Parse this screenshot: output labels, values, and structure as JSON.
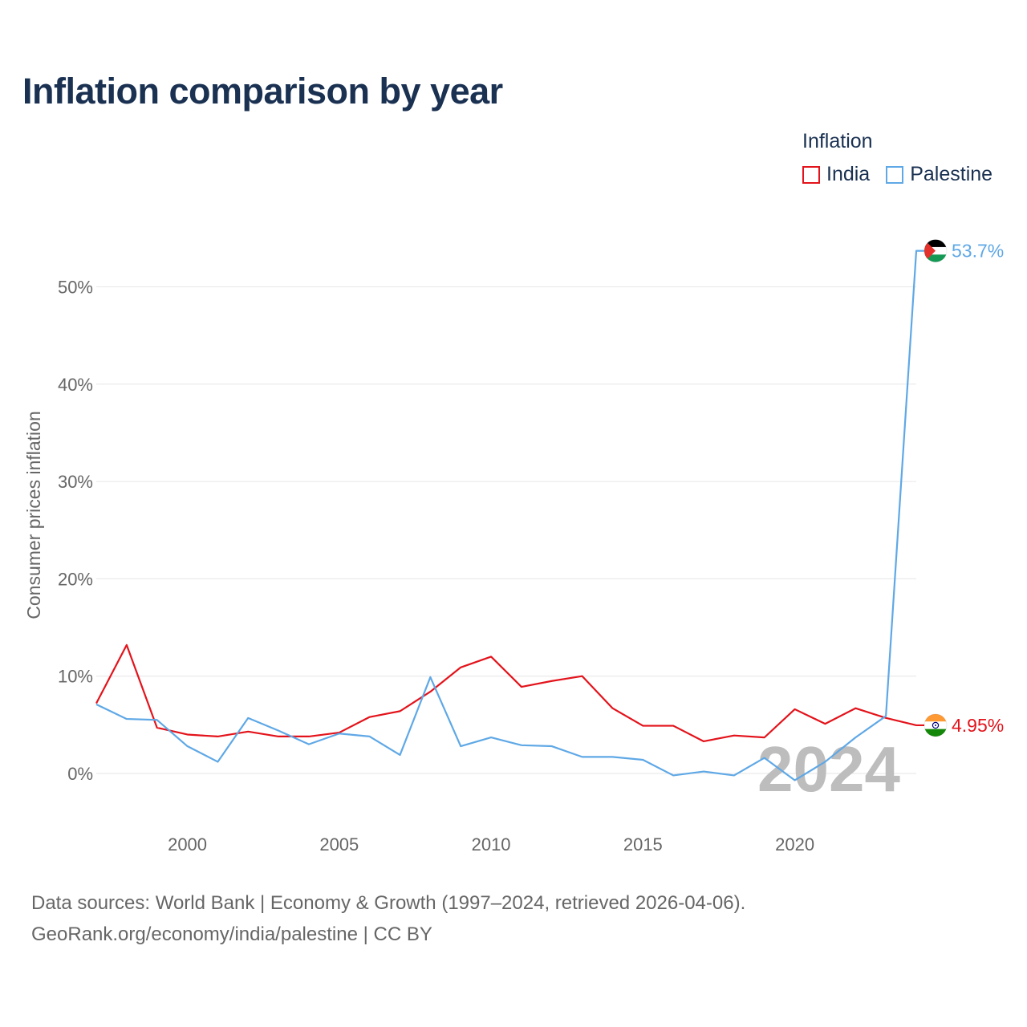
{
  "title": "Inflation comparison by year",
  "legend": {
    "title": "Inflation",
    "items": [
      {
        "label": "India",
        "color": "#e3131b"
      },
      {
        "label": "Palestine",
        "color": "#5fa8e6"
      }
    ]
  },
  "footer": {
    "line1": "Data sources: World Bank | Economy & Growth (1997–2024, retrieved 2026-04-06).",
    "line2": "GeoRank.org/economy/india/palestine | CC BY"
  },
  "chart_data": {
    "type": "line",
    "title": "Inflation comparison by year",
    "xlabel": "",
    "ylabel": "Consumer prices inflation",
    "x": [
      1997,
      1998,
      1999,
      2000,
      2001,
      2002,
      2003,
      2004,
      2005,
      2006,
      2007,
      2008,
      2009,
      2010,
      2011,
      2012,
      2013,
      2014,
      2015,
      2016,
      2017,
      2018,
      2019,
      2020,
      2021,
      2022,
      2023,
      2024
    ],
    "xlim": [
      1997,
      2024
    ],
    "ylim": [
      -5,
      58
    ],
    "x_ticks": [
      2000,
      2005,
      2010,
      2015,
      2020
    ],
    "x_tick_labels": [
      "2000",
      "2005",
      "2010",
      "2015",
      "2020"
    ],
    "y_ticks": [
      0,
      10,
      20,
      30,
      40,
      50
    ],
    "y_tick_labels": [
      "0%",
      "10%",
      "20%",
      "30%",
      "40%",
      "50%"
    ],
    "grid": true,
    "year_watermark": "2024",
    "series": [
      {
        "name": "India",
        "color": "#e3131b",
        "values": [
          7.2,
          13.2,
          4.7,
          4.0,
          3.8,
          4.3,
          3.8,
          3.8,
          4.2,
          5.8,
          6.4,
          8.4,
          10.9,
          12.0,
          8.9,
          9.5,
          10.0,
          6.7,
          4.9,
          4.9,
          3.3,
          3.9,
          3.7,
          6.6,
          5.1,
          6.7,
          5.7,
          4.95
        ],
        "end_label": "4.95%",
        "end_value": 4.95,
        "flag_icon": "india-flag-icon"
      },
      {
        "name": "Palestine",
        "color": "#5fa8e6",
        "values": [
          7.1,
          5.6,
          5.5,
          2.8,
          1.2,
          5.7,
          4.4,
          3.0,
          4.1,
          3.8,
          1.9,
          9.9,
          2.8,
          3.7,
          2.9,
          2.8,
          1.7,
          1.7,
          1.4,
          -0.2,
          0.2,
          -0.2,
          1.6,
          -0.7,
          1.2,
          3.7,
          5.9,
          53.7
        ],
        "end_label": "53.7%",
        "end_value": 53.7,
        "flag_icon": "palestine-flag-icon"
      }
    ]
  }
}
